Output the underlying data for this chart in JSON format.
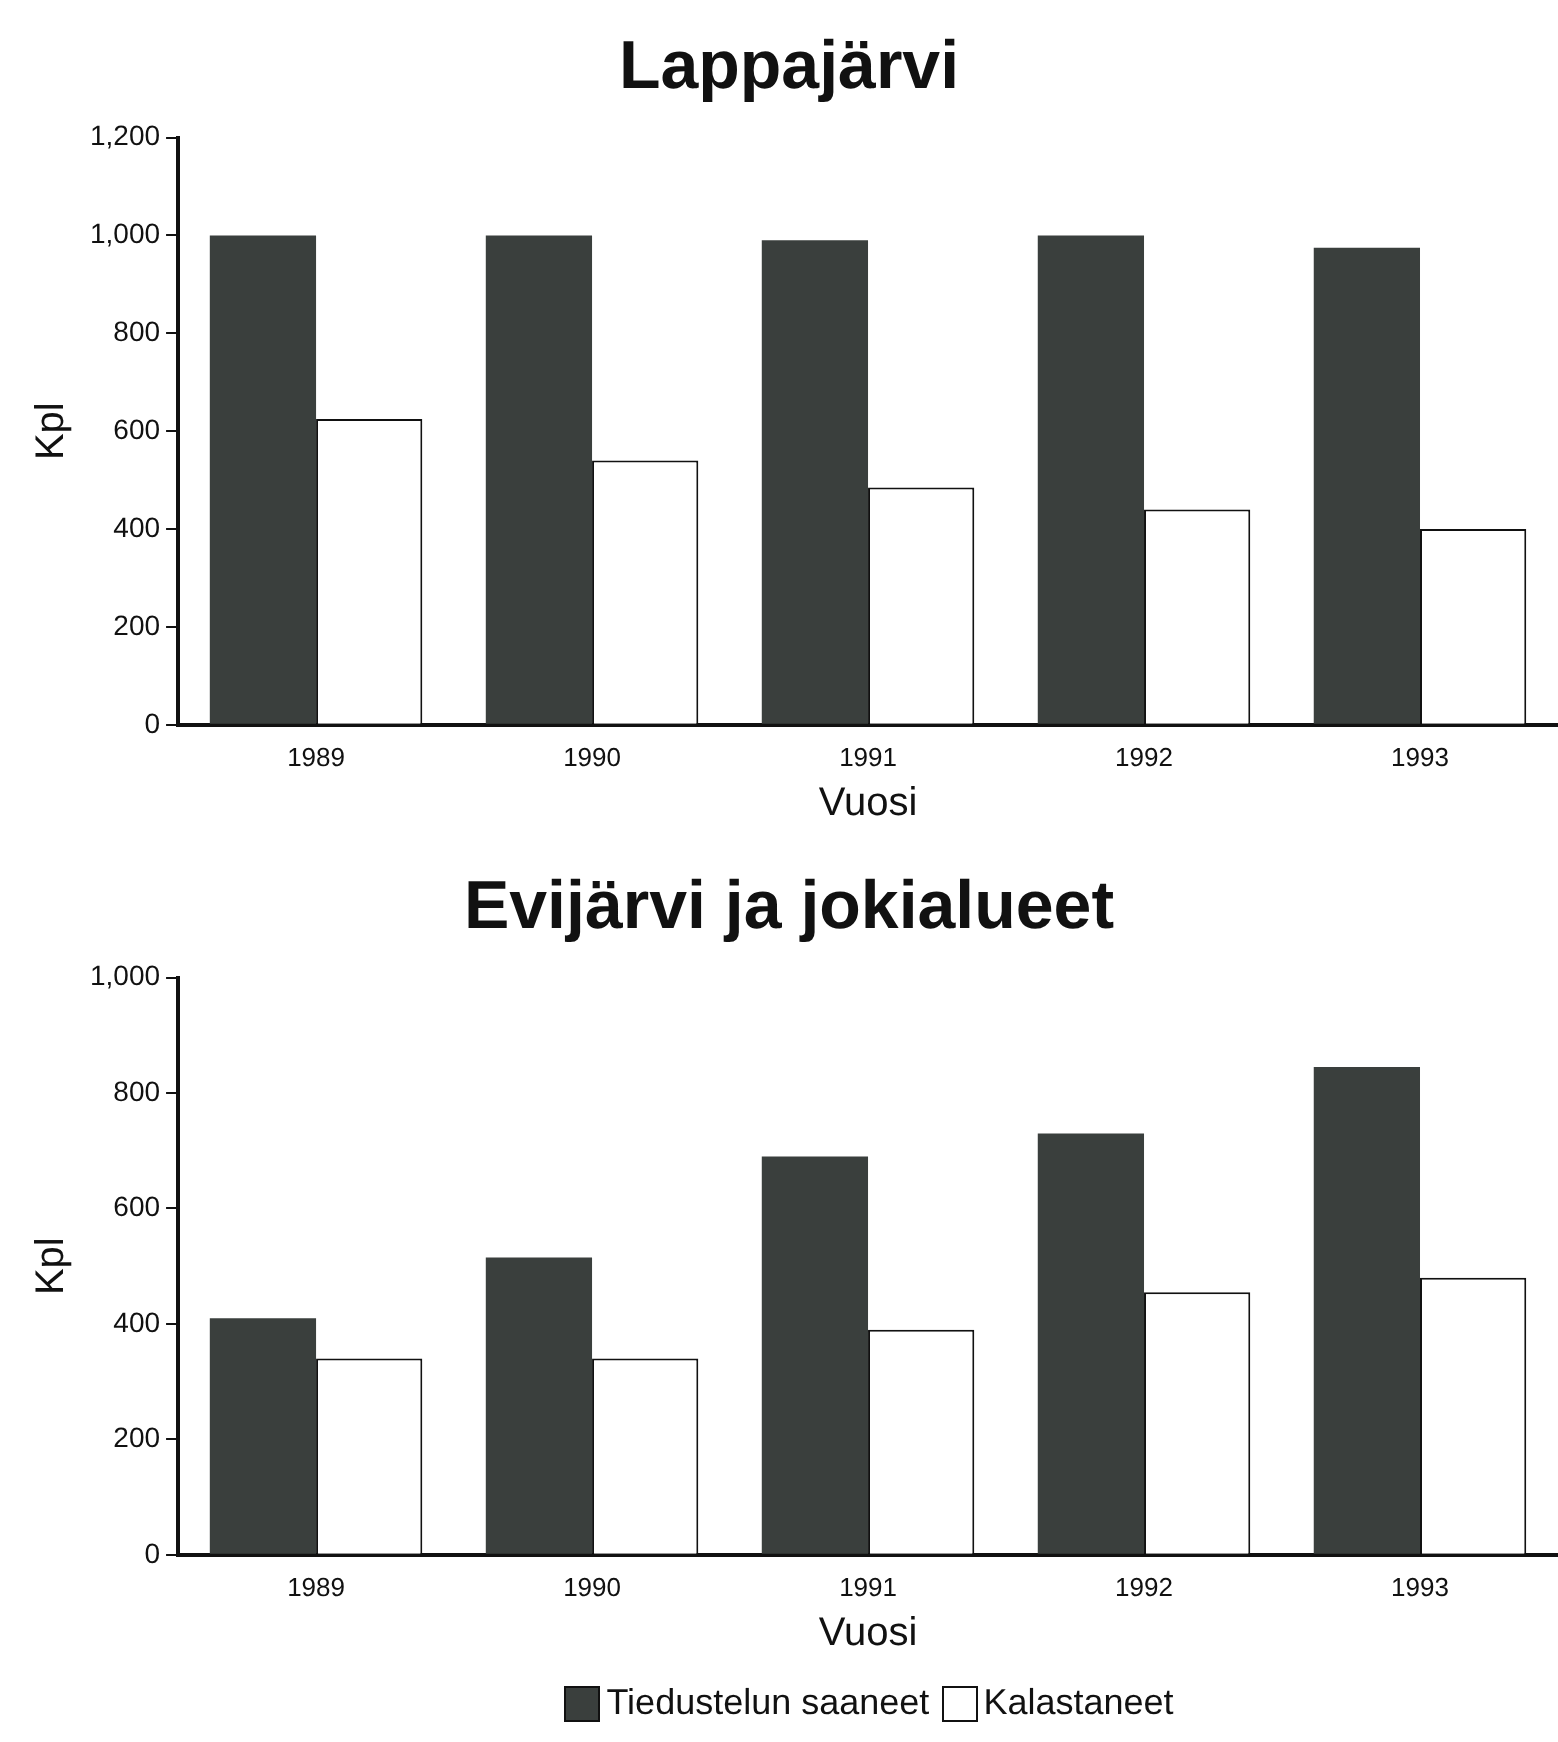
{
  "chart_data": [
    {
      "type": "bar",
      "title": "Lappajärvi",
      "xlabel": "Vuosi",
      "ylabel": "Kpl",
      "categories": [
        "1989",
        "1990",
        "1991",
        "1992",
        "1993"
      ],
      "series": [
        {
          "color": "#3a3f3d",
          "values": [
            1000,
            1000,
            990,
            1000,
            975
          ]
        },
        {
          "color": "#ffffff",
          "values": [
            625,
            540,
            485,
            440,
            400
          ]
        }
      ],
      "ylim": [
        0,
        1200
      ],
      "yticks": [
        {
          "value": 0,
          "label": "0"
        },
        {
          "value": 200,
          "label": "200"
        },
        {
          "value": 400,
          "label": "400"
        },
        {
          "value": 600,
          "label": "600"
        },
        {
          "value": 800,
          "label": "800"
        },
        {
          "value": 1000,
          "label": "1,000"
        },
        {
          "value": 1200,
          "label": "1,200"
        }
      ],
      "grid": false,
      "legend": false
    },
    {
      "type": "bar",
      "title": "Evijärvi ja jokialueet",
      "xlabel": "Vuosi",
      "ylabel": "Kpl",
      "categories": [
        "1989",
        "1990",
        "1991",
        "1992",
        "1993"
      ],
      "series": [
        {
          "name": "Tiedustelun saaneet",
          "color": "#3a3f3d",
          "values": [
            410,
            515,
            690,
            730,
            845
          ]
        },
        {
          "name": "Kalastaneet",
          "color": "#ffffff",
          "values": [
            340,
            340,
            390,
            455,
            480
          ]
        }
      ],
      "ylim": [
        0,
        1000
      ],
      "yticks": [
        {
          "value": 0,
          "label": "0"
        },
        {
          "value": 200,
          "label": "200"
        },
        {
          "value": 400,
          "label": "400"
        },
        {
          "value": 600,
          "label": "600"
        },
        {
          "value": 800,
          "label": "800"
        },
        {
          "value": 1000,
          "label": "1,000"
        }
      ],
      "grid": false,
      "legend": "bottom"
    }
  ]
}
